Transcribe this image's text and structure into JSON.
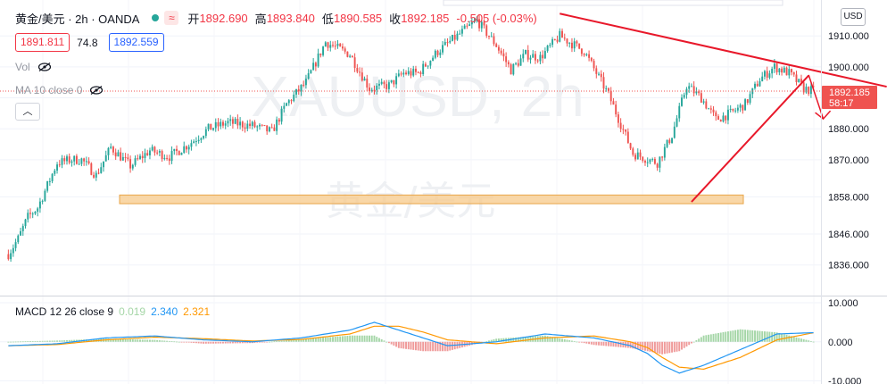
{
  "header": {
    "symbol": "黄金/美元 · 2h · OANDA",
    "open_label": "开",
    "open": "1892.690",
    "high_label": "高",
    "high": "1893.840",
    "low_label": "低",
    "low": "1890.585",
    "close_label": "收",
    "close": "1892.185",
    "change": "-0.505 (-0.03%)",
    "market_status_color": "#26a69a"
  },
  "prices": {
    "bid": "1891.811",
    "spread": "74.8",
    "ask": "1892.559"
  },
  "indicators": {
    "vol_label": "Vol",
    "ma_label": "MA 10 close 0",
    "collapse_icon": "chevron-up-icon",
    "hidden_icon": "eye-off-icon"
  },
  "currency_button": "USD",
  "watermark": {
    "ticker": "XAUUSD, 2h",
    "name": "黄金/美元"
  },
  "macd_legend": {
    "name": "MACD 12 26 close 9",
    "histogram": "0.019",
    "macd": "2.340",
    "signal": "2.321"
  },
  "colors": {
    "up": "#26a69a",
    "down": "#ef5350",
    "annotation": "#e8182a",
    "support_zone": "#f7c98a",
    "macd_line": "#2196f3",
    "signal_line": "#ff9800",
    "hist_pos": "#a5d6a7",
    "hist_neg": "#ef9a9a"
  },
  "chart_data": [
    {
      "type": "candlestick",
      "title": "",
      "y_ticks": [
        1836,
        1846,
        1858,
        1870,
        1880,
        1890,
        1900,
        1910
      ],
      "y_tick_labels": [
        "1836.000",
        "1846.000",
        "1858.000",
        "1870.000",
        "1880.000",
        "1890.000",
        "1900.000",
        "1910.000"
      ],
      "ylim": [
        1826.4,
        1921.6
      ],
      "last_price": 1892.185,
      "last_price_label": "1892.185",
      "countdown_label": "58:17",
      "grid": true,
      "close_path_bar_index": [
        0,
        4,
        8,
        12,
        20,
        26,
        30,
        36,
        42,
        50,
        58,
        66,
        74,
        82,
        90,
        100,
        108,
        114,
        122,
        130,
        140,
        148,
        156,
        162,
        168,
        176,
        184,
        192,
        200,
        206,
        212,
        218,
        226,
        236,
        246,
        256,
        266,
        272,
        278,
        284,
        290,
        296,
        302,
        308,
        314,
        320,
        326,
        330
      ],
      "close_path": [
        1839.5,
        1844.5,
        1851.5,
        1854.5,
        1869,
        1870,
        1870,
        1865,
        1874,
        1868,
        1873,
        1871,
        1875,
        1880,
        1882,
        1881,
        1879,
        1888,
        1895,
        1908,
        1904,
        1893,
        1894,
        1898,
        1898,
        1905,
        1910,
        1915,
        1907,
        1899,
        1904,
        1903,
        1910,
        1905,
        1891,
        1872,
        1869,
        1878,
        1894,
        1890,
        1883,
        1885,
        1888,
        1896,
        1900,
        1898,
        1893,
        1892.2
      ],
      "bar_count": 331,
      "support_zone": [
        1855.8,
        1858.6
      ],
      "down_trendline": {
        "from": [
          1917.2,
          226
        ],
        "to": [
          1893.6,
          360
        ]
      },
      "up_trendline": {
        "from": [
          1856.4,
          280
        ],
        "to": [
          1897.2,
          328
        ]
      },
      "forecast_arrow": {
        "from": [
          1897.4,
          328
        ],
        "to": [
          1883.2,
          334
        ]
      }
    },
    {
      "type": "macd",
      "name": "MACD 12 26 close 9",
      "y_ticks": [
        10,
        0,
        -10
      ],
      "y_tick_labels": [
        "10.000",
        "0.000",
        "-10.000"
      ],
      "ylim": [
        -10.8,
        11.6
      ],
      "macd_path_bar_index": [
        0,
        20,
        40,
        60,
        80,
        100,
        120,
        140,
        150,
        160,
        170,
        180,
        200,
        220,
        240,
        255,
        262,
        268,
        275,
        285,
        300,
        315,
        330
      ],
      "macd_path": [
        -1,
        -0.5,
        1,
        1.5,
        0.5,
        0,
        1,
        3,
        5,
        3,
        1,
        -1,
        0,
        2,
        1,
        -1,
        -3,
        -6,
        -8,
        -6,
        -2,
        2,
        2.34
      ],
      "signal_path_bar_index": [
        0,
        20,
        40,
        60,
        80,
        100,
        120,
        140,
        150,
        160,
        170,
        180,
        200,
        220,
        240,
        255,
        262,
        268,
        275,
        285,
        300,
        315,
        330
      ],
      "signal_path": [
        -1,
        -0.7,
        0.5,
        1.2,
        0.8,
        0.2,
        0.6,
        2,
        4,
        4,
        2.5,
        0.5,
        -0.5,
        1,
        1.5,
        0,
        -1.5,
        -4,
        -6.5,
        -7,
        -4,
        0.5,
        2.321
      ]
    }
  ]
}
